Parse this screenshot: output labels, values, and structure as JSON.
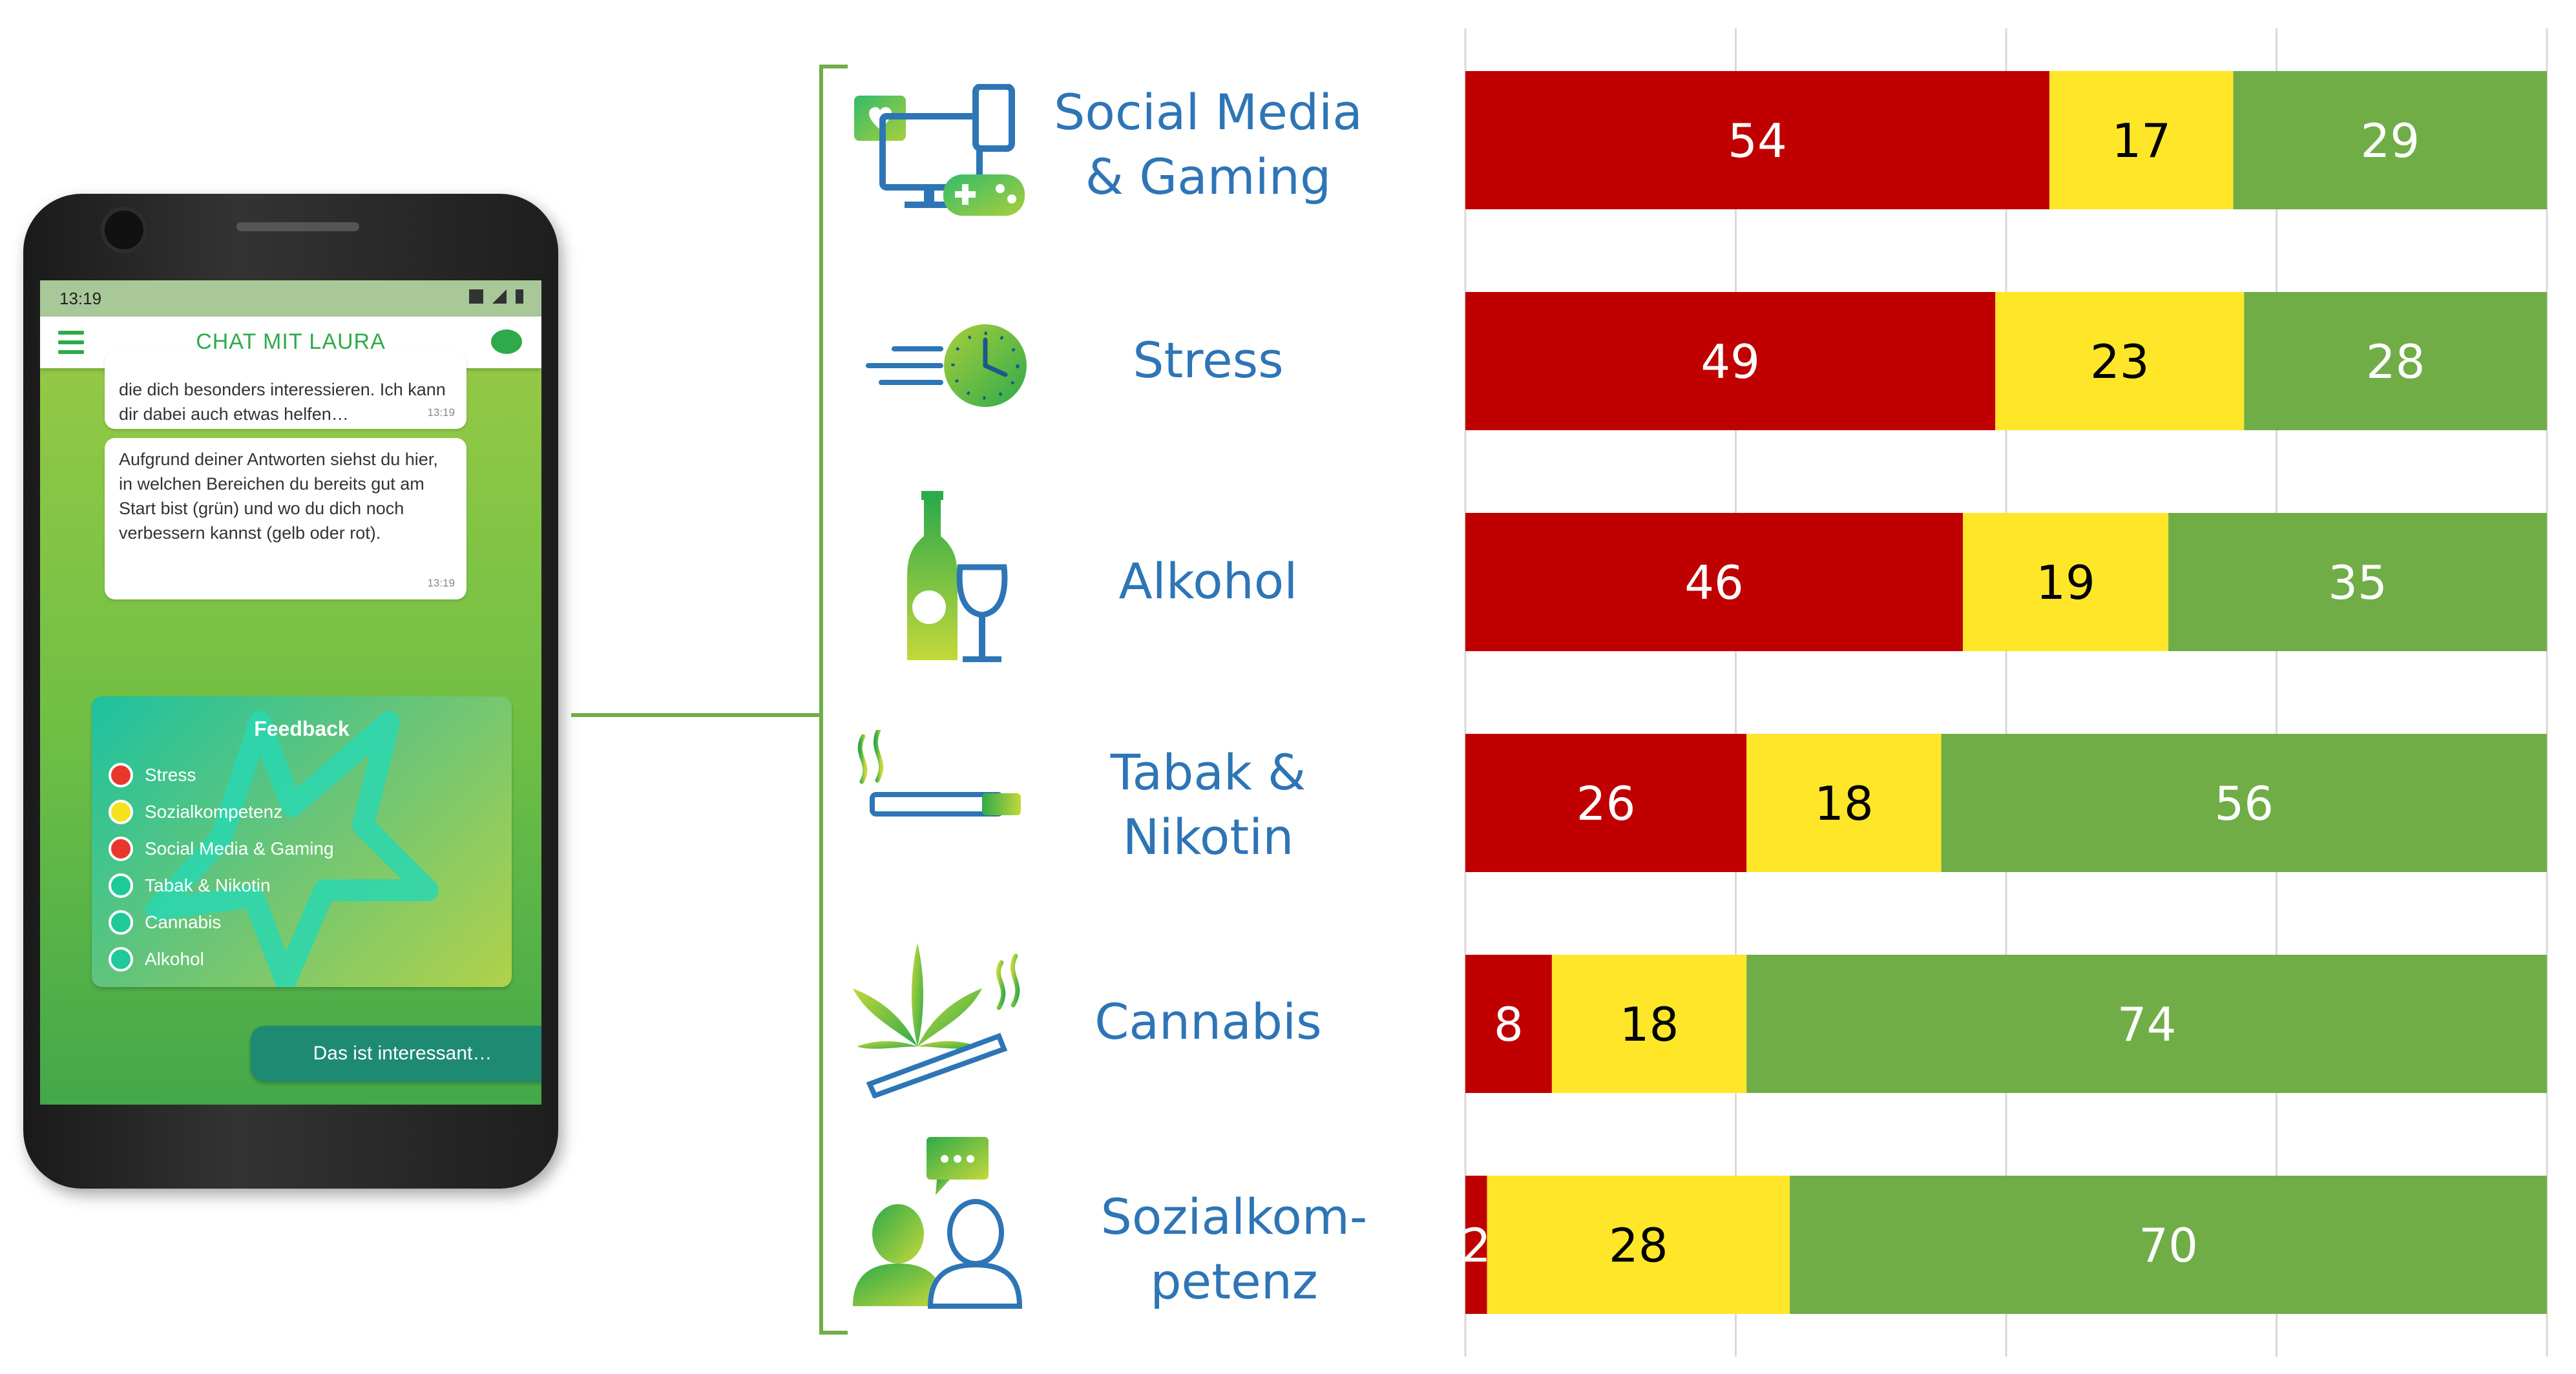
{
  "phone": {
    "status_time": "13:19",
    "app_title": "CHAT MIT LAURA",
    "messages": [
      {
        "text": "die dich besonders interessieren. Ich kann dir dabei auch etwas helfen…",
        "time": "13:19"
      },
      {
        "text": "Aufgrund deiner Antworten siehst du hier, in welchen Bereichen du bereits gut am Start bist (grün) und wo du dich noch verbessern kannst (gelb oder rot).",
        "time": "13:19"
      }
    ],
    "feedback": {
      "title": "Feedback",
      "items": [
        {
          "label": "Stress",
          "status": "red"
        },
        {
          "label": "Sozialkompetenz",
          "status": "yellow"
        },
        {
          "label": "Social Media & Gaming",
          "status": "red"
        },
        {
          "label": "Tabak & Nikotin",
          "status": "green"
        },
        {
          "label": "Cannabis",
          "status": "green"
        },
        {
          "label": "Alkohol",
          "status": "green"
        }
      ]
    },
    "reply_button": "Das ist interessant…"
  },
  "categories": [
    {
      "lines": [
        "Social Media",
        "& Gaming"
      ],
      "icon": "social-media-gaming-icon"
    },
    {
      "lines": [
        "Stress"
      ],
      "icon": "stress-clock-icon"
    },
    {
      "lines": [
        "Alkohol"
      ],
      "icon": "alcohol-bottle-glass-icon"
    },
    {
      "lines": [
        "Tabak &",
        "Nikotin"
      ],
      "icon": "cigarette-icon"
    },
    {
      "lines": [
        "Cannabis"
      ],
      "icon": "cannabis-leaf-icon"
    },
    {
      "lines": [
        "Sozialkom-",
        "petenz"
      ],
      "icon": "social-people-chat-icon"
    }
  ],
  "colors": {
    "red": "#c00000",
    "yellow": "#ffe629",
    "green": "#70ad47",
    "label_blue": "#2e75b6",
    "status_red": "#e8382e",
    "status_yellow": "#f3e21c",
    "status_green": "#1ec99a"
  },
  "chart_data": {
    "type": "bar",
    "orientation": "horizontal-stacked-100",
    "categories": [
      "Social Media & Gaming",
      "Stress",
      "Alkohol",
      "Tabak & Nikotin",
      "Cannabis",
      "Sozialkompetenz"
    ],
    "series": [
      {
        "color": "#c00000",
        "values": [
          54,
          49,
          46,
          26,
          8,
          2
        ]
      },
      {
        "color": "#ffe629",
        "values": [
          17,
          23,
          19,
          18,
          18,
          28
        ]
      },
      {
        "color": "#70ad47",
        "values": [
          29,
          28,
          35,
          56,
          74,
          70
        ]
      }
    ],
    "xlim": [
      0,
      100
    ],
    "grid": true,
    "title": "",
    "xlabel": "",
    "ylabel": ""
  }
}
